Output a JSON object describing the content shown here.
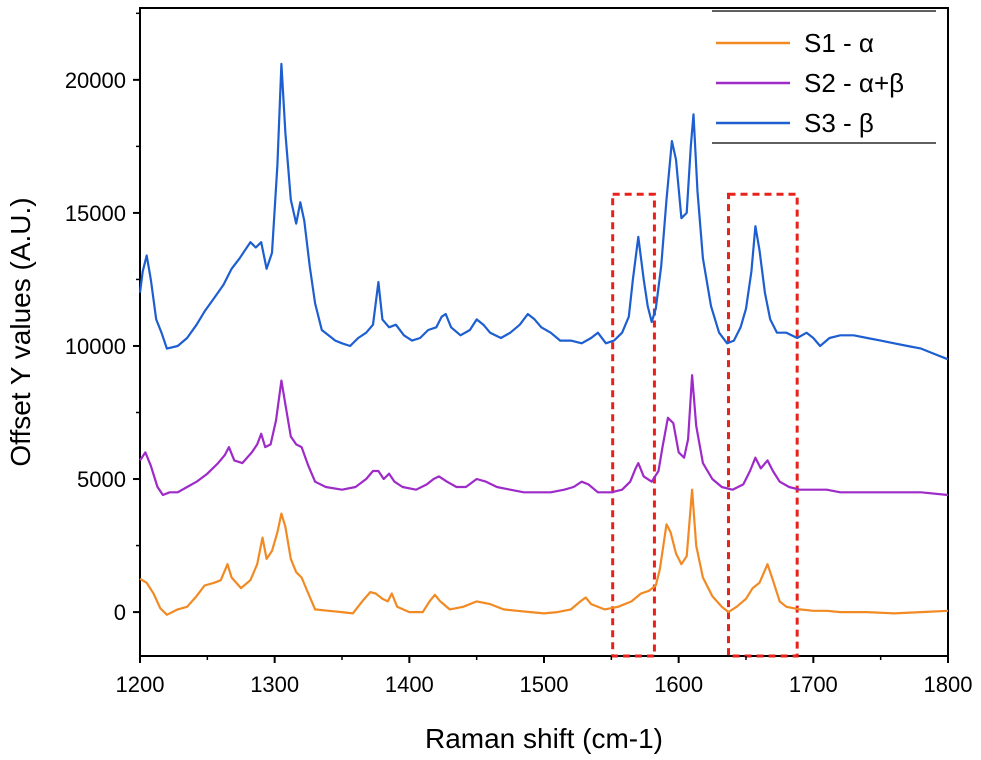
{
  "chart_data": {
    "type": "line",
    "title": "",
    "xlabel": "Raman shift (cm-1)",
    "ylabel": "Offset Y values (A.U.)",
    "xlim": [
      1200,
      1800
    ],
    "ylim": [
      -1650,
      22700
    ],
    "xticks": [
      1200,
      1300,
      1400,
      1500,
      1600,
      1700,
      1800
    ],
    "yticks": [
      0,
      5000,
      10000,
      15000,
      20000
    ],
    "legend_position": "top-right",
    "series": [
      {
        "name": "S1 - α",
        "color": "#f28a24",
        "points": [
          [
            1200,
            1250
          ],
          [
            1205,
            1100
          ],
          [
            1210,
            700
          ],
          [
            1215,
            150
          ],
          [
            1220,
            -100
          ],
          [
            1228,
            100
          ],
          [
            1235,
            200
          ],
          [
            1242,
            600
          ],
          [
            1248,
            1000
          ],
          [
            1255,
            1100
          ],
          [
            1260,
            1200
          ],
          [
            1265,
            1800
          ],
          [
            1268,
            1300
          ],
          [
            1275,
            900
          ],
          [
            1282,
            1200
          ],
          [
            1287,
            1800
          ],
          [
            1291,
            2800
          ],
          [
            1294,
            2000
          ],
          [
            1298,
            2300
          ],
          [
            1302,
            3000
          ],
          [
            1305,
            3700
          ],
          [
            1308,
            3200
          ],
          [
            1312,
            2000
          ],
          [
            1316,
            1500
          ],
          [
            1320,
            1300
          ],
          [
            1325,
            700
          ],
          [
            1330,
            100
          ],
          [
            1340,
            50
          ],
          [
            1350,
            0
          ],
          [
            1358,
            -50
          ],
          [
            1365,
            400
          ],
          [
            1371,
            750
          ],
          [
            1375,
            700
          ],
          [
            1380,
            500
          ],
          [
            1384,
            400
          ],
          [
            1387,
            700
          ],
          [
            1391,
            200
          ],
          [
            1400,
            0
          ],
          [
            1410,
            0
          ],
          [
            1415,
            400
          ],
          [
            1419,
            650
          ],
          [
            1423,
            400
          ],
          [
            1430,
            100
          ],
          [
            1440,
            200
          ],
          [
            1450,
            400
          ],
          [
            1460,
            300
          ],
          [
            1470,
            100
          ],
          [
            1480,
            50
          ],
          [
            1490,
            0
          ],
          [
            1500,
            -50
          ],
          [
            1510,
            0
          ],
          [
            1520,
            100
          ],
          [
            1527,
            400
          ],
          [
            1531,
            550
          ],
          [
            1535,
            300
          ],
          [
            1545,
            100
          ],
          [
            1555,
            200
          ],
          [
            1565,
            400
          ],
          [
            1572,
            700
          ],
          [
            1578,
            800
          ],
          [
            1583,
            1000
          ],
          [
            1586,
            1600
          ],
          [
            1591,
            3300
          ],
          [
            1594,
            3000
          ],
          [
            1598,
            2200
          ],
          [
            1602,
            1800
          ],
          [
            1606,
            2100
          ],
          [
            1610,
            4600
          ],
          [
            1613,
            2500
          ],
          [
            1618,
            1300
          ],
          [
            1625,
            600
          ],
          [
            1632,
            200
          ],
          [
            1637,
            0
          ],
          [
            1643,
            200
          ],
          [
            1650,
            500
          ],
          [
            1655,
            900
          ],
          [
            1660,
            1100
          ],
          [
            1666,
            1800
          ],
          [
            1670,
            1200
          ],
          [
            1675,
            400
          ],
          [
            1680,
            200
          ],
          [
            1690,
            100
          ],
          [
            1700,
            50
          ],
          [
            1710,
            50
          ],
          [
            1720,
            0
          ],
          [
            1740,
            0
          ],
          [
            1760,
            -50
          ],
          [
            1780,
            0
          ],
          [
            1800,
            50
          ]
        ]
      },
      {
        "name": "S2 - α+β",
        "color": "#9e2ac8",
        "points": [
          [
            1200,
            5700
          ],
          [
            1204,
            6000
          ],
          [
            1208,
            5500
          ],
          [
            1213,
            4700
          ],
          [
            1217,
            4400
          ],
          [
            1222,
            4500
          ],
          [
            1228,
            4500
          ],
          [
            1235,
            4700
          ],
          [
            1242,
            4900
          ],
          [
            1250,
            5200
          ],
          [
            1258,
            5600
          ],
          [
            1263,
            5900
          ],
          [
            1266,
            6200
          ],
          [
            1270,
            5700
          ],
          [
            1276,
            5600
          ],
          [
            1283,
            6000
          ],
          [
            1287,
            6300
          ],
          [
            1290,
            6700
          ],
          [
            1293,
            6200
          ],
          [
            1297,
            6300
          ],
          [
            1301,
            7200
          ],
          [
            1305,
            8700
          ],
          [
            1308,
            7800
          ],
          [
            1312,
            6600
          ],
          [
            1316,
            6300
          ],
          [
            1320,
            6200
          ],
          [
            1325,
            5500
          ],
          [
            1330,
            4900
          ],
          [
            1338,
            4700
          ],
          [
            1350,
            4600
          ],
          [
            1360,
            4700
          ],
          [
            1368,
            5000
          ],
          [
            1373,
            5300
          ],
          [
            1377,
            5300
          ],
          [
            1381,
            5000
          ],
          [
            1385,
            5200
          ],
          [
            1389,
            4900
          ],
          [
            1395,
            4700
          ],
          [
            1405,
            4600
          ],
          [
            1413,
            4800
          ],
          [
            1418,
            5000
          ],
          [
            1422,
            5100
          ],
          [
            1428,
            4900
          ],
          [
            1435,
            4700
          ],
          [
            1442,
            4700
          ],
          [
            1450,
            5000
          ],
          [
            1457,
            4900
          ],
          [
            1465,
            4700
          ],
          [
            1475,
            4600
          ],
          [
            1485,
            4500
          ],
          [
            1495,
            4500
          ],
          [
            1505,
            4500
          ],
          [
            1515,
            4600
          ],
          [
            1522,
            4700
          ],
          [
            1528,
            4900
          ],
          [
            1533,
            4800
          ],
          [
            1540,
            4500
          ],
          [
            1550,
            4500
          ],
          [
            1558,
            4600
          ],
          [
            1564,
            4900
          ],
          [
            1568,
            5400
          ],
          [
            1570,
            5600
          ],
          [
            1574,
            5100
          ],
          [
            1580,
            4900
          ],
          [
            1585,
            5300
          ],
          [
            1588,
            6200
          ],
          [
            1592,
            7300
          ],
          [
            1596,
            7100
          ],
          [
            1600,
            6000
          ],
          [
            1604,
            5800
          ],
          [
            1607,
            6500
          ],
          [
            1610,
            8900
          ],
          [
            1613,
            7000
          ],
          [
            1618,
            5600
          ],
          [
            1625,
            5000
          ],
          [
            1632,
            4700
          ],
          [
            1640,
            4600
          ],
          [
            1648,
            4800
          ],
          [
            1653,
            5300
          ],
          [
            1657,
            5800
          ],
          [
            1661,
            5400
          ],
          [
            1666,
            5700
          ],
          [
            1670,
            5300
          ],
          [
            1675,
            4900
          ],
          [
            1682,
            4700
          ],
          [
            1690,
            4600
          ],
          [
            1700,
            4600
          ],
          [
            1710,
            4600
          ],
          [
            1720,
            4500
          ],
          [
            1740,
            4500
          ],
          [
            1760,
            4500
          ],
          [
            1780,
            4500
          ],
          [
            1800,
            4400
          ]
        ]
      },
      {
        "name": "S3 - β",
        "color": "#1d5fd0",
        "points": [
          [
            1200,
            12000
          ],
          [
            1202,
            12800
          ],
          [
            1205,
            13400
          ],
          [
            1208,
            12500
          ],
          [
            1212,
            11000
          ],
          [
            1216,
            10500
          ],
          [
            1220,
            9900
          ],
          [
            1228,
            10000
          ],
          [
            1235,
            10300
          ],
          [
            1242,
            10800
          ],
          [
            1248,
            11300
          ],
          [
            1255,
            11800
          ],
          [
            1262,
            12300
          ],
          [
            1268,
            12900
          ],
          [
            1274,
            13300
          ],
          [
            1278,
            13600
          ],
          [
            1282,
            13900
          ],
          [
            1286,
            13700
          ],
          [
            1290,
            13900
          ],
          [
            1294,
            12900
          ],
          [
            1298,
            13500
          ],
          [
            1302,
            16800
          ],
          [
            1305,
            20600
          ],
          [
            1308,
            18000
          ],
          [
            1312,
            15500
          ],
          [
            1316,
            14600
          ],
          [
            1319,
            15400
          ],
          [
            1322,
            14700
          ],
          [
            1326,
            13000
          ],
          [
            1330,
            11600
          ],
          [
            1335,
            10600
          ],
          [
            1340,
            10400
          ],
          [
            1345,
            10200
          ],
          [
            1350,
            10100
          ],
          [
            1356,
            10000
          ],
          [
            1362,
            10300
          ],
          [
            1368,
            10500
          ],
          [
            1373,
            10800
          ],
          [
            1377,
            12400
          ],
          [
            1380,
            11000
          ],
          [
            1385,
            10700
          ],
          [
            1390,
            10800
          ],
          [
            1396,
            10400
          ],
          [
            1402,
            10200
          ],
          [
            1408,
            10300
          ],
          [
            1414,
            10600
          ],
          [
            1420,
            10700
          ],
          [
            1424,
            11100
          ],
          [
            1427,
            11200
          ],
          [
            1431,
            10700
          ],
          [
            1438,
            10400
          ],
          [
            1445,
            10600
          ],
          [
            1450,
            11000
          ],
          [
            1455,
            10800
          ],
          [
            1460,
            10500
          ],
          [
            1468,
            10300
          ],
          [
            1475,
            10500
          ],
          [
            1482,
            10800
          ],
          [
            1488,
            11200
          ],
          [
            1493,
            11000
          ],
          [
            1498,
            10700
          ],
          [
            1505,
            10500
          ],
          [
            1512,
            10200
          ],
          [
            1520,
            10200
          ],
          [
            1528,
            10100
          ],
          [
            1535,
            10300
          ],
          [
            1540,
            10500
          ],
          [
            1546,
            10100
          ],
          [
            1552,
            10200
          ],
          [
            1558,
            10500
          ],
          [
            1563,
            11100
          ],
          [
            1566,
            12500
          ],
          [
            1570,
            14100
          ],
          [
            1574,
            12500
          ],
          [
            1577,
            11500
          ],
          [
            1580,
            10900
          ],
          [
            1583,
            11400
          ],
          [
            1587,
            13000
          ],
          [
            1591,
            15500
          ],
          [
            1595,
            17700
          ],
          [
            1598,
            17000
          ],
          [
            1602,
            14800
          ],
          [
            1606,
            15000
          ],
          [
            1609,
            17500
          ],
          [
            1611,
            18700
          ],
          [
            1614,
            15800
          ],
          [
            1618,
            13300
          ],
          [
            1624,
            11500
          ],
          [
            1630,
            10500
          ],
          [
            1636,
            10100
          ],
          [
            1641,
            10200
          ],
          [
            1646,
            10700
          ],
          [
            1650,
            11400
          ],
          [
            1654,
            12800
          ],
          [
            1657,
            14500
          ],
          [
            1660,
            13600
          ],
          [
            1664,
            12000
          ],
          [
            1668,
            11000
          ],
          [
            1673,
            10500
          ],
          [
            1680,
            10500
          ],
          [
            1688,
            10300
          ],
          [
            1695,
            10500
          ],
          [
            1700,
            10300
          ],
          [
            1705,
            10000
          ],
          [
            1712,
            10300
          ],
          [
            1720,
            10400
          ],
          [
            1730,
            10400
          ],
          [
            1740,
            10300
          ],
          [
            1750,
            10200
          ],
          [
            1760,
            10100
          ],
          [
            1770,
            10000
          ],
          [
            1780,
            9900
          ],
          [
            1790,
            9700
          ],
          [
            1800,
            9500
          ]
        ]
      }
    ],
    "annotation_boxes": [
      {
        "type": "dashed-rectangle",
        "color": "#e8221a",
        "x": [
          1551,
          1582
        ],
        "y": [
          -1650,
          15700
        ]
      },
      {
        "type": "dashed-rectangle",
        "color": "#e8221a",
        "x": [
          1637,
          1688
        ],
        "y": [
          -1650,
          15700
        ]
      }
    ]
  }
}
